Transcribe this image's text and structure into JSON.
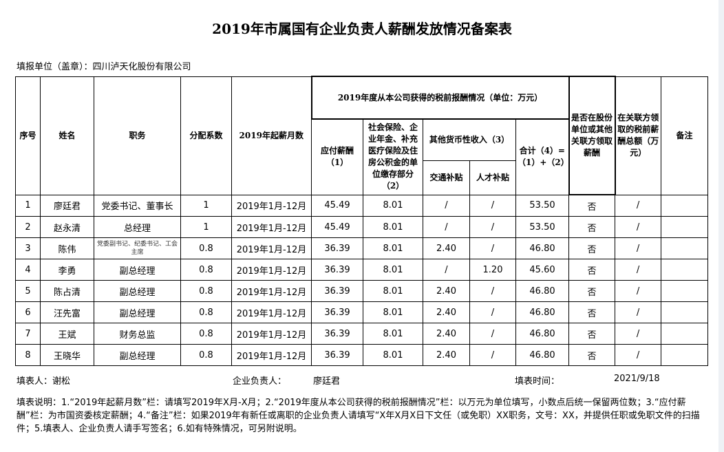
{
  "title": "2019年市属国有企业负责人薪酬发放情况备案表",
  "unit": "填报单位（盖章）：四川泸天化股份有限公司",
  "headers": {
    "no": "序号",
    "name": "姓名",
    "post": "职务",
    "coef": "分配系数",
    "months": "2019年起薪月数",
    "group": "2019年度从本公司获得的税前报酬情况（单位：万元）",
    "salary": "应付薪酬（1）",
    "social": "社会保险、企业年金、补充医疗保险及住房公积金的单位缴存部分（2）",
    "other": "其他货币性收入（3）",
    "traffic": "交通补贴",
    "talent": "人才补贴",
    "total": "合计（4）=（1）+（2）+（3）",
    "related": "是否在股份单位或其他关联方领取薪酬",
    "related_amt": "在关联方领取的税前薪酬总额（万元）",
    "remark": "备注"
  },
  "rows": [
    {
      "no": "1",
      "name": "廖廷君",
      "post": "党委书记、董事长",
      "coef": "1",
      "months": "2019年1月-12月",
      "salary": "45.49",
      "social": "8.01",
      "traffic": "/",
      "talent": "/",
      "total": "53.50",
      "related": "否",
      "related_amt": "/",
      "remark": ""
    },
    {
      "no": "2",
      "name": "赵永清",
      "post": "总经理",
      "coef": "1",
      "months": "2019年1月-12月",
      "salary": "45.49",
      "social": "8.01",
      "traffic": "/",
      "talent": "/",
      "total": "53.50",
      "related": "否",
      "related_amt": "/",
      "remark": ""
    },
    {
      "no": "3",
      "name": "陈伟",
      "post": "党委副书记、纪委书记、工会主席",
      "coef": "0.8",
      "months": "2019年1月-12月",
      "salary": "36.39",
      "social": "8.01",
      "traffic": "2.40",
      "talent": "/",
      "total": "46.80",
      "related": "否",
      "related_amt": "/",
      "remark": ""
    },
    {
      "no": "4",
      "name": "李勇",
      "post": "副总经理",
      "coef": "0.8",
      "months": "2019年1月-12月",
      "salary": "36.39",
      "social": "8.01",
      "traffic": "/",
      "talent": "1.20",
      "total": "45.60",
      "related": "否",
      "related_amt": "/",
      "remark": ""
    },
    {
      "no": "5",
      "name": "陈占清",
      "post": "副总经理",
      "coef": "0.8",
      "months": "2019年1月-12月",
      "salary": "36.39",
      "social": "8.01",
      "traffic": "2.40",
      "talent": "/",
      "total": "46.80",
      "related": "否",
      "related_amt": "/",
      "remark": ""
    },
    {
      "no": "6",
      "name": "汪先富",
      "post": "副总经理",
      "coef": "0.8",
      "months": "2019年1月-12月",
      "salary": "36.39",
      "social": "8.01",
      "traffic": "2.40",
      "talent": "/",
      "total": "46.80",
      "related": "否",
      "related_amt": "/",
      "remark": ""
    },
    {
      "no": "7",
      "name": "王斌",
      "post": "财务总监",
      "coef": "0.8",
      "months": "2019年1月-12月",
      "salary": "36.39",
      "social": "8.01",
      "traffic": "2.40",
      "talent": "/",
      "total": "46.80",
      "related": "否",
      "related_amt": "/",
      "remark": ""
    },
    {
      "no": "8",
      "name": "王晓华",
      "post": "副总经理",
      "coef": "0.8",
      "months": "2019年1月-12月",
      "salary": "36.39",
      "social": "8.01",
      "traffic": "2.40",
      "talent": "/",
      "total": "46.80",
      "related": "否",
      "related_amt": "/",
      "remark": ""
    }
  ],
  "footer": {
    "filler": "填表人：谢松",
    "leader_label": "企业负责人：",
    "leader": "廖廷君",
    "date_label": "填表时间：",
    "date": "2021/9/18"
  },
  "note": "填表说明：1.“2019年起薪月数”栏：请填写2019年X月-X月；2.“2019年度从本公司获得的税前报酬情况”栏：以万元为单位填写，小数点后统一保留两位数；3.“应付薪酬”栏：为市国资委核定薪酬；4.“备注”栏：如果2019年有新任或离职的企业负责人请填写“X年X月X日下文任（或免职）XX职务，文号：XX，并提供任职或免职文件的扫描件；5.填表人、企业负责人请手写签名；6.如有特殊情况，可另附说明。"
}
